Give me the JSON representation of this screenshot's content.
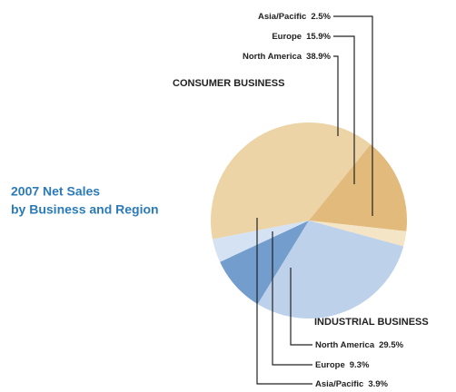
{
  "chart_data": {
    "type": "pie",
    "title": [
      "2007 Net Sales",
      "by Business and Region"
    ],
    "series": [
      {
        "name": "CONSUMER BUSINESS",
        "categories": [
          "North America",
          "Europe",
          "Asia/Pacific"
        ],
        "values": [
          38.9,
          15.9,
          2.5
        ],
        "value_labels": [
          "38.9%",
          "15.9%",
          "2.5%"
        ],
        "colors": [
          "#ecd4a6",
          "#e2ba7c",
          "#f3e5c6"
        ]
      },
      {
        "name": "INDUSTRIAL BUSINESS",
        "categories": [
          "North America",
          "Europe",
          "Asia/Pacific"
        ],
        "values": [
          29.5,
          9.3,
          3.9
        ],
        "value_labels": [
          "29.5%",
          "9.3%",
          "3.9%"
        ],
        "colors": [
          "#bdd1eb",
          "#729dcc",
          "#d4e2f3"
        ]
      }
    ]
  }
}
